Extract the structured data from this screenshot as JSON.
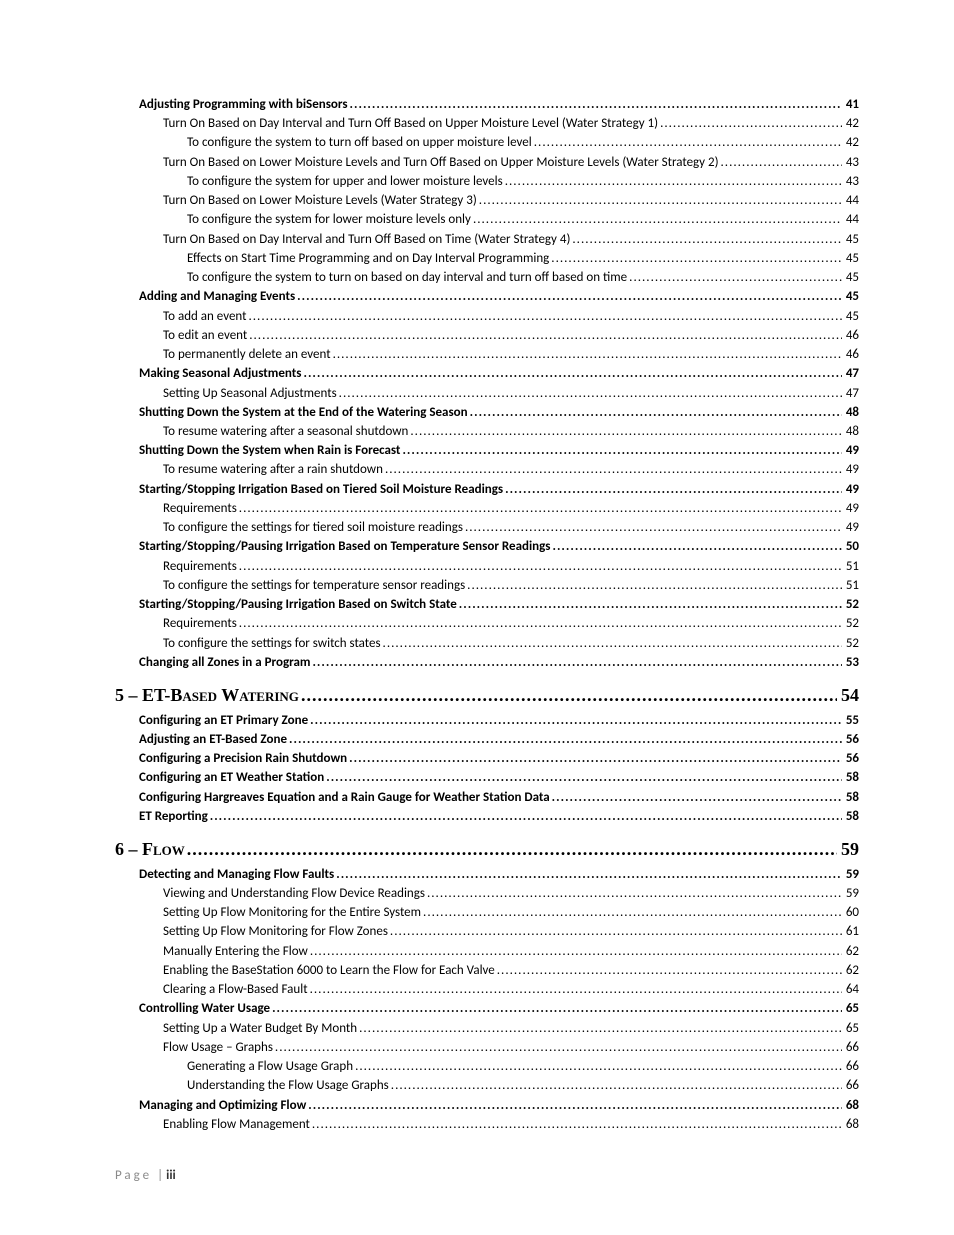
{
  "footer": {
    "label": "Page",
    "separator": "|",
    "number": "iii"
  },
  "entries": [
    {
      "level": 1,
      "bold": true,
      "section": false,
      "title": "Adjusting Programming with biSensors",
      "page": "41"
    },
    {
      "level": 2,
      "bold": false,
      "section": false,
      "title": "Turn On Based on Day Interval and Turn Off Based on Upper Moisture Level (Water Strategy 1)",
      "page": "42"
    },
    {
      "level": 3,
      "bold": false,
      "section": false,
      "title": "To configure the system to turn off based on upper moisture level",
      "page": "42"
    },
    {
      "level": 2,
      "bold": false,
      "section": false,
      "title": "Turn On Based on Lower Moisture Levels and Turn Off Based on Upper Moisture Levels  (Water Strategy 2)",
      "page": "43"
    },
    {
      "level": 3,
      "bold": false,
      "section": false,
      "title": "To configure the system for upper and lower moisture levels",
      "page": "43"
    },
    {
      "level": 2,
      "bold": false,
      "section": false,
      "title": "Turn On Based on Lower Moisture Levels (Water Strategy 3)",
      "page": "44"
    },
    {
      "level": 3,
      "bold": false,
      "section": false,
      "title": "To configure the system for lower moisture levels only",
      "page": "44"
    },
    {
      "level": 2,
      "bold": false,
      "section": false,
      "title": "Turn On Based on Day Interval and Turn Off Based on Time (Water Strategy 4)",
      "page": "45"
    },
    {
      "level": 3,
      "bold": false,
      "section": false,
      "title": "Effects on Start Time Programming and on Day Interval Programming",
      "page": "45"
    },
    {
      "level": 3,
      "bold": false,
      "section": false,
      "title": "To configure the system to turn on based on day interval and turn off based on time",
      "page": "45"
    },
    {
      "level": 1,
      "bold": true,
      "section": false,
      "title": "Adding and Managing Events",
      "page": "45"
    },
    {
      "level": 2,
      "bold": false,
      "section": false,
      "title": "To add an event",
      "page": "45"
    },
    {
      "level": 2,
      "bold": false,
      "section": false,
      "title": "To edit an event",
      "page": "46"
    },
    {
      "level": 2,
      "bold": false,
      "section": false,
      "title": "To permanently delete an event",
      "page": "46"
    },
    {
      "level": 1,
      "bold": true,
      "section": false,
      "title": "Making Seasonal Adjustments",
      "page": "47"
    },
    {
      "level": 2,
      "bold": false,
      "section": false,
      "title": "Setting Up Seasonal Adjustments",
      "page": "47"
    },
    {
      "level": 1,
      "bold": true,
      "section": false,
      "title": "Shutting Down the System at the End of the Watering Season",
      "page": "48"
    },
    {
      "level": 2,
      "bold": false,
      "section": false,
      "title": "To resume watering after a seasonal shutdown",
      "page": "48"
    },
    {
      "level": 1,
      "bold": true,
      "section": false,
      "title": "Shutting Down the System when Rain is Forecast",
      "page": "49"
    },
    {
      "level": 2,
      "bold": false,
      "section": false,
      "title": "To resume watering after a rain shutdown",
      "page": "49"
    },
    {
      "level": 1,
      "bold": true,
      "section": false,
      "title": "Starting/Stopping Irrigation Based on Tiered Soil Moisture Readings",
      "page": "49"
    },
    {
      "level": 2,
      "bold": false,
      "section": false,
      "title": "Requirements",
      "page": "49"
    },
    {
      "level": 2,
      "bold": false,
      "section": false,
      "title": "To configure the settings for tiered soil moisture readings",
      "page": "49"
    },
    {
      "level": 1,
      "bold": true,
      "section": false,
      "title": "Starting/Stopping/Pausing Irrigation Based on Temperature Sensor Readings",
      "page": "50"
    },
    {
      "level": 2,
      "bold": false,
      "section": false,
      "title": "Requirements",
      "page": "51"
    },
    {
      "level": 2,
      "bold": false,
      "section": false,
      "title": "To configure the settings for temperature sensor readings",
      "page": "51"
    },
    {
      "level": 1,
      "bold": true,
      "section": false,
      "title": "Starting/Stopping/Pausing Irrigation Based on Switch State",
      "page": "52"
    },
    {
      "level": 2,
      "bold": false,
      "section": false,
      "title": "Requirements",
      "page": "52"
    },
    {
      "level": 2,
      "bold": false,
      "section": false,
      "title": "To configure the settings for switch states",
      "page": "52"
    },
    {
      "level": 1,
      "bold": true,
      "section": false,
      "title": "Changing all Zones in a Program",
      "page": "53"
    },
    {
      "level": 0,
      "bold": true,
      "section": true,
      "title": "5 – ET-Based Watering",
      "page": "54"
    },
    {
      "level": 1,
      "bold": true,
      "section": false,
      "title": "Configuring an ET Primary Zone",
      "page": "55"
    },
    {
      "level": 1,
      "bold": true,
      "section": false,
      "title": "Adjusting an ET-Based Zone",
      "page": "56"
    },
    {
      "level": 1,
      "bold": true,
      "section": false,
      "title": "Configuring a Precision Rain Shutdown",
      "page": "56"
    },
    {
      "level": 1,
      "bold": true,
      "section": false,
      "title": "Configuring an ET Weather Station",
      "page": "58"
    },
    {
      "level": 1,
      "bold": true,
      "section": false,
      "title": "Configuring Hargreaves Equation and a Rain Gauge for Weather Station Data",
      "page": "58"
    },
    {
      "level": 1,
      "bold": true,
      "section": false,
      "title": "ET Reporting",
      "page": "58"
    },
    {
      "level": 0,
      "bold": true,
      "section": true,
      "title": "6 – Flow",
      "page": "59"
    },
    {
      "level": 1,
      "bold": true,
      "section": false,
      "title": "Detecting and Managing Flow Faults",
      "page": "59"
    },
    {
      "level": 2,
      "bold": false,
      "section": false,
      "title": "Viewing and Understanding Flow Device Readings",
      "page": "59"
    },
    {
      "level": 2,
      "bold": false,
      "section": false,
      "title": "Setting Up Flow Monitoring for the Entire System",
      "page": "60"
    },
    {
      "level": 2,
      "bold": false,
      "section": false,
      "title": "Setting Up Flow Monitoring for Flow Zones",
      "page": "61"
    },
    {
      "level": 2,
      "bold": false,
      "section": false,
      "title": "Manually Entering the Flow",
      "page": "62"
    },
    {
      "level": 2,
      "bold": false,
      "section": false,
      "title": "Enabling the BaseStation 6000 to Learn the Flow for Each Valve",
      "page": "62"
    },
    {
      "level": 2,
      "bold": false,
      "section": false,
      "title": "Clearing a Flow-Based Fault",
      "page": "64"
    },
    {
      "level": 1,
      "bold": true,
      "section": false,
      "title": "Controlling Water Usage",
      "page": "65"
    },
    {
      "level": 2,
      "bold": false,
      "section": false,
      "title": "Setting Up a Water Budget By Month",
      "page": "65"
    },
    {
      "level": 2,
      "bold": false,
      "section": false,
      "title": "Flow Usage – Graphs",
      "page": "66"
    },
    {
      "level": 3,
      "bold": false,
      "section": false,
      "title": "Generating a Flow Usage Graph",
      "page": "66"
    },
    {
      "level": 3,
      "bold": false,
      "section": false,
      "title": "Understanding the Flow Usage Graphs",
      "page": "66"
    },
    {
      "level": 1,
      "bold": true,
      "section": false,
      "title": "Managing and Optimizing Flow",
      "page": "68"
    },
    {
      "level": 2,
      "bold": false,
      "section": false,
      "title": "Enabling Flow Management",
      "page": "68"
    }
  ]
}
